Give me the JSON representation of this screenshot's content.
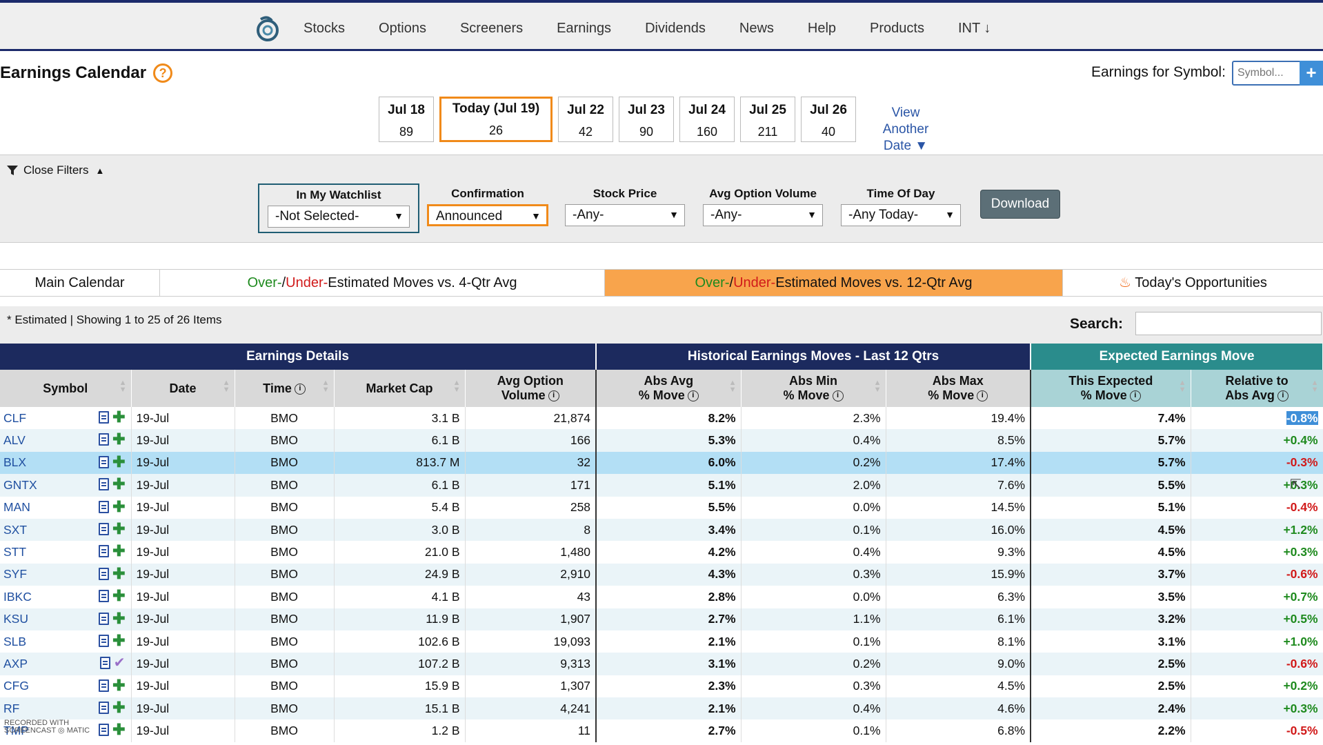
{
  "nav": {
    "items": [
      "Stocks",
      "Options",
      "Screeners",
      "Earnings",
      "Dividends",
      "News",
      "Help",
      "Products",
      "INT ↓"
    ]
  },
  "page": {
    "title": "Earnings Calendar",
    "help": "?",
    "symbol_label": "Earnings for Symbol:",
    "symbol_placeholder": "Symbol...",
    "symbol_add": "+"
  },
  "dates": [
    {
      "label": "Jul 18",
      "count": "89"
    },
    {
      "label": "Today (Jul 19)",
      "count": "26",
      "today": true
    },
    {
      "label": "Jul 22",
      "count": "42"
    },
    {
      "label": "Jul 23",
      "count": "90"
    },
    {
      "label": "Jul 24",
      "count": "160"
    },
    {
      "label": "Jul 25",
      "count": "211"
    },
    {
      "label": "Jul 26",
      "count": "40"
    }
  ],
  "view_another": {
    "line1": "View Another",
    "line2": "Date ▼"
  },
  "filters": {
    "close_label": "Close Filters",
    "watchlist": {
      "label": "In My Watchlist",
      "value": "-Not Selected-"
    },
    "confirmation": {
      "label": "Confirmation",
      "value": "Announced"
    },
    "stock_price": {
      "label": "Stock Price",
      "value": "-Any-"
    },
    "avg_option_volume": {
      "label": "Avg Option Volume",
      "value": "-Any-"
    },
    "time_of_day": {
      "label": "Time Of Day",
      "value": "-Any Today-"
    },
    "download": "Download"
  },
  "tabs": {
    "main": "Main Calendar",
    "over": "Over-",
    "slash": "/",
    "under": "Under-",
    "est4": "Estimated Moves vs. 4-Qtr Avg",
    "est12": "Estimated Moves vs. 12-Qtr Avg",
    "opps": "Today's Opportunities"
  },
  "info": {
    "showing": "* Estimated | Showing 1 to 25 of 26 Items",
    "search_label": "Search:"
  },
  "table": {
    "groups": {
      "details": "Earnings Details",
      "historical": "Historical Earnings Moves - Last 12 Qtrs",
      "expected": "Expected Earnings Move"
    },
    "cols": {
      "symbol": "Symbol",
      "date": "Date",
      "time": "Time",
      "mcap": "Market Cap",
      "aov1": "Avg Option",
      "aov2": "Volume",
      "avg1": "Abs Avg",
      "avg2": "% Move",
      "min1": "Abs Min",
      "min2": "% Move",
      "max1": "Abs Max",
      "max2": "% Move",
      "exp1": "This Expected",
      "exp2": "% Move",
      "rel1": "Relative to",
      "rel2": "Abs Avg"
    },
    "rows": [
      {
        "sym": "CLF",
        "date": "19-Jul",
        "time": "BMO",
        "mcap": "3.1 B",
        "aov": "21,874",
        "avg": "8.2%",
        "min": "2.3%",
        "max": "19.4%",
        "exp": "7.4%",
        "rel": "-0.8%",
        "relc": "sel",
        "icon": "plus"
      },
      {
        "sym": "ALV",
        "date": "19-Jul",
        "time": "BMO",
        "mcap": "6.1 B",
        "aov": "166",
        "avg": "5.3%",
        "min": "0.4%",
        "max": "8.5%",
        "exp": "5.7%",
        "rel": "+0.4%",
        "relc": "green",
        "icon": "plus"
      },
      {
        "sym": "BLX",
        "date": "19-Jul",
        "time": "BMO",
        "mcap": "813.7 M",
        "aov": "32",
        "avg": "6.0%",
        "min": "0.2%",
        "max": "17.4%",
        "exp": "5.7%",
        "rel": "-0.3%",
        "relc": "red",
        "icon": "plus",
        "hl": true
      },
      {
        "sym": "GNTX",
        "date": "19-Jul",
        "time": "BMO",
        "mcap": "6.1 B",
        "aov": "171",
        "avg": "5.1%",
        "min": "2.0%",
        "max": "7.6%",
        "exp": "5.5%",
        "rel": "+0.3%",
        "relc": "green",
        "icon": "plus"
      },
      {
        "sym": "MAN",
        "date": "19-Jul",
        "time": "BMO",
        "mcap": "5.4 B",
        "aov": "258",
        "avg": "5.5%",
        "min": "0.0%",
        "max": "14.5%",
        "exp": "5.1%",
        "rel": "-0.4%",
        "relc": "red",
        "icon": "plus"
      },
      {
        "sym": "SXT",
        "date": "19-Jul",
        "time": "BMO",
        "mcap": "3.0 B",
        "aov": "8",
        "avg": "3.4%",
        "min": "0.1%",
        "max": "16.0%",
        "exp": "4.5%",
        "rel": "+1.2%",
        "relc": "green",
        "icon": "plus"
      },
      {
        "sym": "STT",
        "date": "19-Jul",
        "time": "BMO",
        "mcap": "21.0 B",
        "aov": "1,480",
        "avg": "4.2%",
        "min": "0.4%",
        "max": "9.3%",
        "exp": "4.5%",
        "rel": "+0.3%",
        "relc": "green",
        "icon": "plus"
      },
      {
        "sym": "SYF",
        "date": "19-Jul",
        "time": "BMO",
        "mcap": "24.9 B",
        "aov": "2,910",
        "avg": "4.3%",
        "min": "0.3%",
        "max": "15.9%",
        "exp": "3.7%",
        "rel": "-0.6%",
        "relc": "red",
        "icon": "plus"
      },
      {
        "sym": "IBKC",
        "date": "19-Jul",
        "time": "BMO",
        "mcap": "4.1 B",
        "aov": "43",
        "avg": "2.8%",
        "min": "0.0%",
        "max": "6.3%",
        "exp": "3.5%",
        "rel": "+0.7%",
        "relc": "green",
        "icon": "plus"
      },
      {
        "sym": "KSU",
        "date": "19-Jul",
        "time": "BMO",
        "mcap": "11.9 B",
        "aov": "1,907",
        "avg": "2.7%",
        "min": "1.1%",
        "max": "6.1%",
        "exp": "3.2%",
        "rel": "+0.5%",
        "relc": "green",
        "icon": "plus"
      },
      {
        "sym": "SLB",
        "date": "19-Jul",
        "time": "BMO",
        "mcap": "102.6 B",
        "aov": "19,093",
        "avg": "2.1%",
        "min": "0.1%",
        "max": "8.1%",
        "exp": "3.1%",
        "rel": "+1.0%",
        "relc": "green",
        "icon": "plus"
      },
      {
        "sym": "AXP",
        "date": "19-Jul",
        "time": "BMO",
        "mcap": "107.2 B",
        "aov": "9,313",
        "avg": "3.1%",
        "min": "0.2%",
        "max": "9.0%",
        "exp": "2.5%",
        "rel": "-0.6%",
        "relc": "red",
        "icon": "check"
      },
      {
        "sym": "CFG",
        "date": "19-Jul",
        "time": "BMO",
        "mcap": "15.9 B",
        "aov": "1,307",
        "avg": "2.3%",
        "min": "0.3%",
        "max": "4.5%",
        "exp": "2.5%",
        "rel": "+0.2%",
        "relc": "green",
        "icon": "plus"
      },
      {
        "sym": "RF",
        "date": "19-Jul",
        "time": "BMO",
        "mcap": "15.1 B",
        "aov": "4,241",
        "avg": "2.1%",
        "min": "0.4%",
        "max": "4.6%",
        "exp": "2.4%",
        "rel": "+0.3%",
        "relc": "green",
        "icon": "plus"
      },
      {
        "sym": "TMP",
        "date": "19-Jul",
        "time": "BMO",
        "mcap": "1.2 B",
        "aov": "11",
        "avg": "2.7%",
        "min": "0.1%",
        "max": "6.8%",
        "exp": "2.2%",
        "rel": "-0.5%",
        "relc": "red",
        "icon": "plus"
      }
    ]
  },
  "watermark": {
    "line1": "RECORDED WITH",
    "line2": "SCREENCAST ◎ MATIC"
  },
  "colors": {
    "navy": "#1c2a5e",
    "teal": "#2a8c8c",
    "orange": "#f08a1a",
    "tab_active": "#f8a44c",
    "green": "#1e8a1e",
    "red": "#d11a1a",
    "link": "#1f4fa0"
  }
}
